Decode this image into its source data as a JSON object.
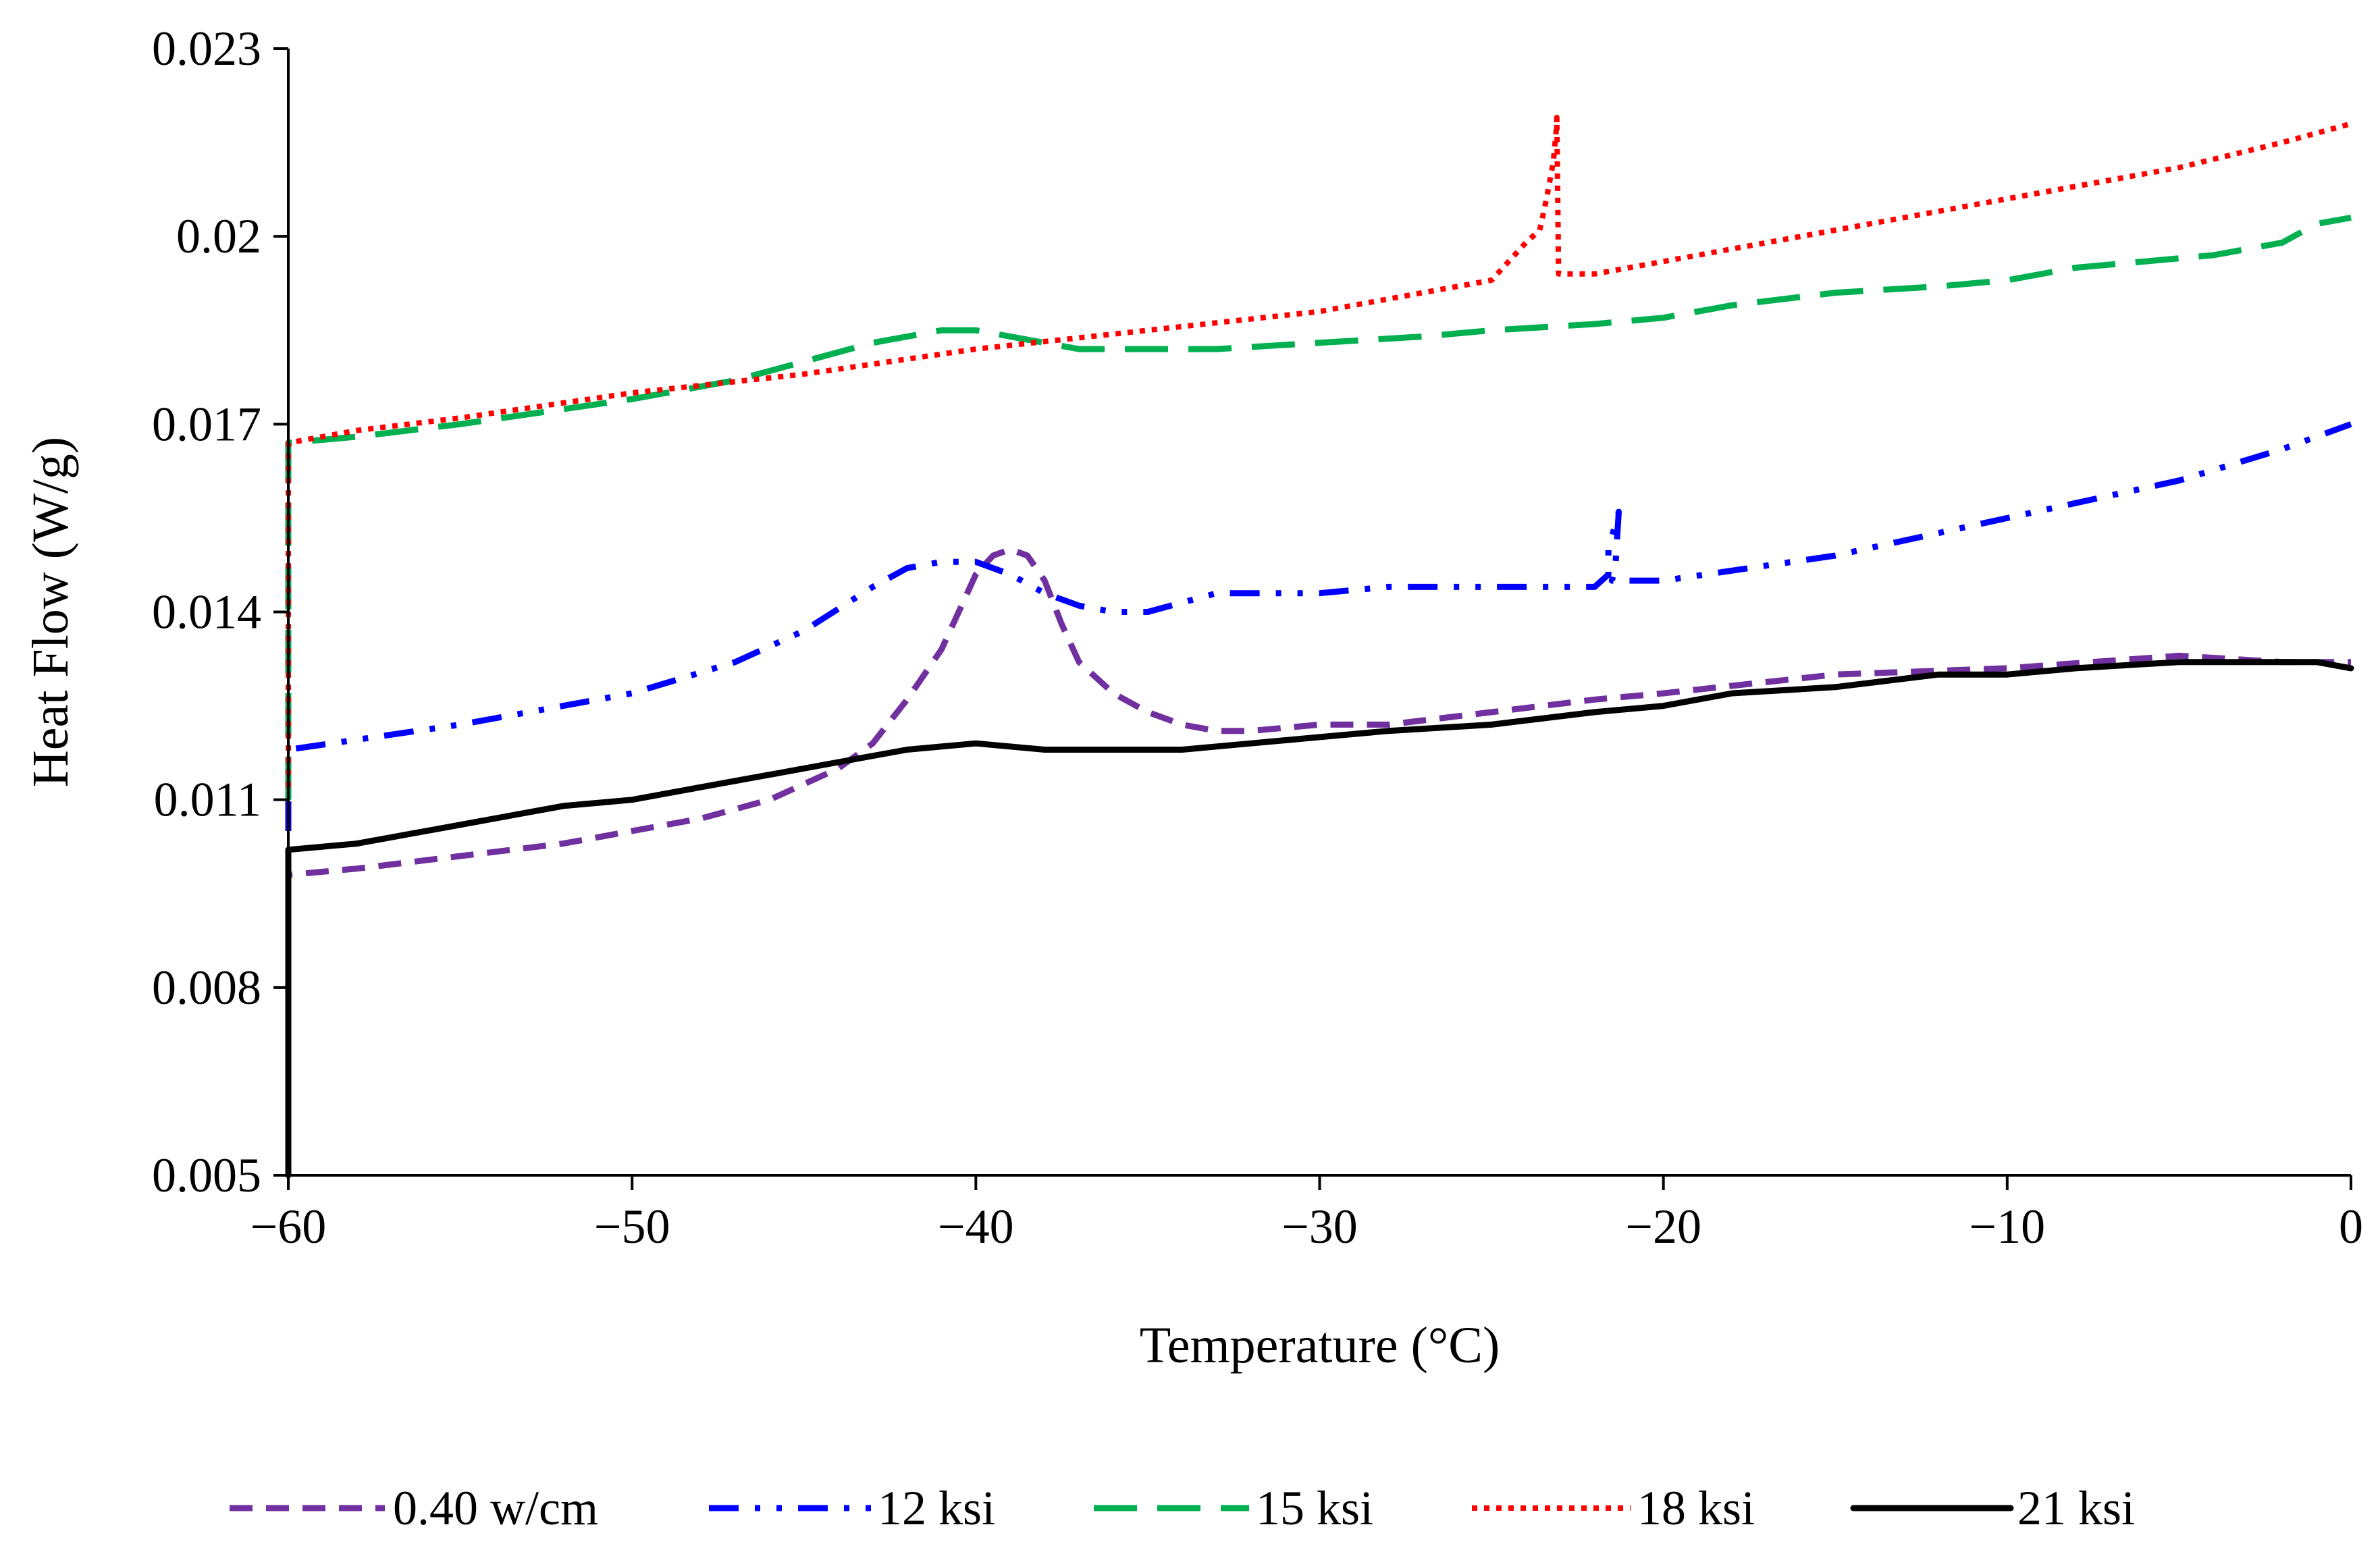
{
  "chart_data": {
    "type": "line",
    "title": "",
    "xlabel": "Temperature (°C)",
    "ylabel": "Heat Flow (W/g)",
    "xlim": [
      -60,
      0
    ],
    "ylim": [
      0.005,
      0.023
    ],
    "x_ticks": [
      -60,
      -50,
      -40,
      -30,
      -20,
      -10,
      0
    ],
    "x_tick_labels": [
      "−60",
      "−50",
      "−40",
      "−30",
      "−20",
      "−10",
      "0"
    ],
    "y_ticks": [
      0.005,
      0.008,
      0.011,
      0.014,
      0.017,
      0.02,
      0.023
    ],
    "y_tick_labels": [
      "0.005",
      "0.008",
      "0.011",
      "0.014",
      "0.017",
      "0.02",
      "0.023"
    ],
    "grid": false,
    "legend_position": "bottom",
    "series": [
      {
        "name": "0.40 w/cm",
        "color": "#7030A0",
        "style": "dashed",
        "x": [
          -60,
          -60,
          -58,
          -55,
          -52,
          -50,
          -48,
          -46,
          -44,
          -43,
          -42,
          -41,
          -40.5,
          -40,
          -39.5,
          -39,
          -38.5,
          -38,
          -37.5,
          -37,
          -36,
          -35,
          -34,
          -33,
          -32,
          -30,
          -28,
          -25,
          -22,
          -20,
          -15,
          -10,
          -5,
          -2,
          0
        ],
        "y": [
          0.0095,
          0.0098,
          0.0099,
          0.0101,
          0.0103,
          0.0105,
          0.0107,
          0.011,
          0.0115,
          0.0119,
          0.0126,
          0.0134,
          0.014,
          0.0146,
          0.0149,
          0.015,
          0.0149,
          0.0145,
          0.0138,
          0.0132,
          0.0127,
          0.0124,
          0.0122,
          0.0121,
          0.0121,
          0.0122,
          0.0122,
          0.0124,
          0.0126,
          0.0127,
          0.013,
          0.0131,
          0.0133,
          0.0132,
          0.0132
        ]
      },
      {
        "name": "12 ksi",
        "color": "#0000FF",
        "style": "dash-dot-dot",
        "x": [
          -60,
          -60,
          -55,
          -50,
          -47,
          -45,
          -43,
          -42,
          -41,
          -40,
          -39,
          -38,
          -37,
          -36,
          -35,
          -33,
          -30,
          -28,
          -26,
          -24,
          -22,
          -21.6,
          -21.6,
          -21.3,
          -21.4,
          -21.5,
          -20,
          -15,
          -10,
          -5,
          -2,
          0
        ],
        "y": [
          0.0105,
          0.0118,
          0.0122,
          0.0127,
          0.0132,
          0.0137,
          0.0144,
          0.0147,
          0.0148,
          0.0148,
          0.0146,
          0.0143,
          0.0141,
          0.014,
          0.014,
          0.0143,
          0.0143,
          0.0144,
          0.0144,
          0.0144,
          0.0144,
          0.0146,
          0.015,
          0.0156,
          0.0147,
          0.0145,
          0.0145,
          0.0149,
          0.0155,
          0.0161,
          0.0166,
          0.017
        ]
      },
      {
        "name": "15 ksi",
        "color": "#00B050",
        "style": "long-dash",
        "x": [
          -60,
          -60,
          -58,
          -55,
          -50,
          -47,
          -45,
          -43,
          -41,
          -40,
          -39,
          -38,
          -37,
          -36,
          -35,
          -33,
          -30,
          -27,
          -25,
          -22,
          -20,
          -18,
          -15,
          -12,
          -10,
          -8,
          -6,
          -4,
          -2,
          -1,
          0
        ],
        "y": [
          0.011,
          0.0167,
          0.0168,
          0.017,
          0.0174,
          0.0177,
          0.018,
          0.0183,
          0.0185,
          0.0185,
          0.0184,
          0.0183,
          0.0182,
          0.0182,
          0.0182,
          0.0182,
          0.0183,
          0.0184,
          0.0185,
          0.0186,
          0.0187,
          0.0189,
          0.0191,
          0.0192,
          0.0193,
          0.0195,
          0.0196,
          0.0197,
          0.0199,
          0.0202,
          0.0203
        ]
      },
      {
        "name": "18 ksi",
        "color": "#FF0000",
        "style": "dotted",
        "x": [
          -60,
          -60,
          -58,
          -55,
          -50,
          -45,
          -40,
          -35,
          -30,
          -27,
          -25,
          -24.5,
          -24,
          -23.6,
          -23.4,
          -23.2,
          -23.1,
          -23.1,
          -23.05,
          -22,
          -20,
          -15,
          -10,
          -5,
          -2,
          0
        ],
        "y": [
          0.0112,
          0.0167,
          0.0169,
          0.0171,
          0.0175,
          0.0178,
          0.0182,
          0.0185,
          0.0188,
          0.0191,
          0.0193,
          0.0196,
          0.0199,
          0.0201,
          0.0206,
          0.0212,
          0.0218,
          0.0219,
          0.0194,
          0.0194,
          0.0196,
          0.0201,
          0.0206,
          0.0211,
          0.0215,
          0.0218
        ]
      },
      {
        "name": "21 ksi",
        "color": "#000000",
        "style": "solid",
        "x": [
          -60,
          -60,
          -58,
          -55,
          -52,
          -50,
          -48,
          -46,
          -44,
          -42,
          -40,
          -38,
          -36,
          -34,
          -32,
          -30,
          -28,
          -25,
          -22,
          -20,
          -18,
          -15,
          -12,
          -10,
          -8,
          -5,
          -3,
          -1,
          0
        ],
        "y": [
          0.005,
          0.0102,
          0.0103,
          0.0106,
          0.0109,
          0.011,
          0.0112,
          0.0114,
          0.0116,
          0.0118,
          0.0119,
          0.0118,
          0.0118,
          0.0118,
          0.0119,
          0.012,
          0.0121,
          0.0122,
          0.0124,
          0.0125,
          0.0127,
          0.0128,
          0.013,
          0.013,
          0.0131,
          0.0132,
          0.0132,
          0.0132,
          0.0131
        ]
      }
    ]
  }
}
